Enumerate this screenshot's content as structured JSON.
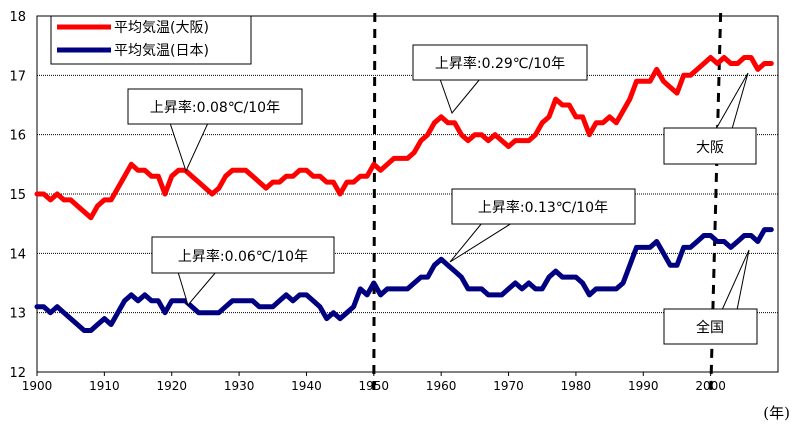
{
  "chart_data": {
    "type": "line",
    "x_unit_label": "(年)",
    "xlim": [
      1900,
      2010
    ],
    "ylim": [
      12,
      18
    ],
    "x_ticks": [
      1900,
      1910,
      1920,
      1930,
      1940,
      1950,
      1960,
      1970,
      1980,
      1990,
      2000
    ],
    "y_ticks": [
      12,
      13,
      14,
      15,
      16,
      17,
      18
    ],
    "grid": "horizontal",
    "legend_position": "top-left",
    "colors": {
      "osaka": "#ff0000",
      "japan": "#000080",
      "divider": "#000000"
    },
    "vertical_markers": [
      1950,
      2000
    ],
    "series": [
      {
        "id": "osaka",
        "name": "平均気温(大阪)",
        "x": [
          1900,
          1901,
          1902,
          1903,
          1904,
          1905,
          1906,
          1907,
          1908,
          1909,
          1910,
          1911,
          1912,
          1913,
          1914,
          1915,
          1916,
          1917,
          1918,
          1919,
          1920,
          1921,
          1922,
          1923,
          1924,
          1925,
          1926,
          1927,
          1928,
          1929,
          1930,
          1931,
          1932,
          1933,
          1934,
          1935,
          1936,
          1937,
          1938,
          1939,
          1940,
          1941,
          1942,
          1943,
          1944,
          1945,
          1946,
          1947,
          1948,
          1949,
          1950,
          1951,
          1952,
          1953,
          1954,
          1955,
          1956,
          1957,
          1958,
          1959,
          1960,
          1961,
          1962,
          1963,
          1964,
          1965,
          1966,
          1967,
          1968,
          1969,
          1970,
          1971,
          1972,
          1973,
          1974,
          1975,
          1976,
          1977,
          1978,
          1979,
          1980,
          1981,
          1982,
          1983,
          1984,
          1985,
          1986,
          1987,
          1988,
          1989,
          1990,
          1991,
          1992,
          1993,
          1994,
          1995,
          1996,
          1997,
          1998,
          1999,
          2000,
          2001,
          2002,
          2003,
          2004,
          2005,
          2006,
          2007,
          2008,
          2009
        ],
        "values": [
          15.0,
          15.0,
          14.9,
          15.0,
          14.9,
          14.9,
          14.8,
          14.7,
          14.6,
          14.8,
          14.9,
          14.9,
          15.1,
          15.3,
          15.5,
          15.4,
          15.4,
          15.3,
          15.3,
          15.0,
          15.3,
          15.4,
          15.4,
          15.3,
          15.2,
          15.1,
          15.0,
          15.1,
          15.3,
          15.4,
          15.4,
          15.4,
          15.3,
          15.2,
          15.1,
          15.2,
          15.2,
          15.3,
          15.3,
          15.4,
          15.4,
          15.3,
          15.3,
          15.2,
          15.2,
          15.0,
          15.2,
          15.2,
          15.3,
          15.3,
          15.5,
          15.4,
          15.5,
          15.6,
          15.6,
          15.6,
          15.7,
          15.9,
          16.0,
          16.2,
          16.3,
          16.2,
          16.2,
          16.0,
          15.9,
          16.0,
          16.0,
          15.9,
          16.0,
          15.9,
          15.8,
          15.9,
          15.9,
          15.9,
          16.0,
          16.2,
          16.3,
          16.6,
          16.5,
          16.5,
          16.3,
          16.3,
          16.0,
          16.2,
          16.2,
          16.3,
          16.2,
          16.4,
          16.6,
          16.9,
          16.9,
          16.9,
          17.1,
          16.9,
          16.8,
          16.7,
          17.0,
          17.0,
          17.1,
          17.2,
          17.3,
          17.2,
          17.3,
          17.2,
          17.2,
          17.3,
          17.3,
          17.1,
          17.2,
          17.2
        ]
      },
      {
        "id": "japan",
        "name": "平均気温(日本)",
        "x": [
          1900,
          1901,
          1902,
          1903,
          1904,
          1905,
          1906,
          1907,
          1908,
          1909,
          1910,
          1911,
          1912,
          1913,
          1914,
          1915,
          1916,
          1917,
          1918,
          1919,
          1920,
          1921,
          1922,
          1923,
          1924,
          1925,
          1926,
          1927,
          1928,
          1929,
          1930,
          1931,
          1932,
          1933,
          1934,
          1935,
          1936,
          1937,
          1938,
          1939,
          1940,
          1941,
          1942,
          1943,
          1944,
          1945,
          1946,
          1947,
          1948,
          1949,
          1950,
          1951,
          1952,
          1953,
          1954,
          1955,
          1956,
          1957,
          1958,
          1959,
          1960,
          1961,
          1962,
          1963,
          1964,
          1965,
          1966,
          1967,
          1968,
          1969,
          1970,
          1971,
          1972,
          1973,
          1974,
          1975,
          1976,
          1977,
          1978,
          1979,
          1980,
          1981,
          1982,
          1983,
          1984,
          1985,
          1986,
          1987,
          1988,
          1989,
          1990,
          1991,
          1992,
          1993,
          1994,
          1995,
          1996,
          1997,
          1998,
          1999,
          2000,
          2001,
          2002,
          2003,
          2004,
          2005,
          2006,
          2007,
          2008,
          2009
        ],
        "values": [
          13.1,
          13.1,
          13.0,
          13.1,
          13.0,
          12.9,
          12.8,
          12.7,
          12.7,
          12.8,
          12.9,
          12.8,
          13.0,
          13.2,
          13.3,
          13.2,
          13.3,
          13.2,
          13.2,
          13.0,
          13.2,
          13.2,
          13.2,
          13.1,
          13.0,
          13.0,
          13.0,
          13.0,
          13.1,
          13.2,
          13.2,
          13.2,
          13.2,
          13.1,
          13.1,
          13.1,
          13.2,
          13.3,
          13.2,
          13.3,
          13.3,
          13.2,
          13.1,
          12.9,
          13.0,
          12.9,
          13.0,
          13.1,
          13.4,
          13.3,
          13.5,
          13.3,
          13.4,
          13.4,
          13.4,
          13.4,
          13.5,
          13.6,
          13.6,
          13.8,
          13.9,
          13.8,
          13.7,
          13.6,
          13.4,
          13.4,
          13.4,
          13.3,
          13.3,
          13.3,
          13.4,
          13.5,
          13.4,
          13.5,
          13.4,
          13.4,
          13.6,
          13.7,
          13.6,
          13.6,
          13.6,
          13.5,
          13.3,
          13.4,
          13.4,
          13.4,
          13.4,
          13.5,
          13.8,
          14.1,
          14.1,
          14.1,
          14.2,
          14.0,
          13.8,
          13.8,
          14.1,
          14.1,
          14.2,
          14.3,
          14.3,
          14.2,
          14.2,
          14.1,
          14.2,
          14.3,
          14.3,
          14.2,
          14.4,
          14.4
        ]
      }
    ],
    "annotations": [
      {
        "id": "osaka-early",
        "text": "上昇率:0.08℃/10年",
        "series": "osaka",
        "period": "1900-1950"
      },
      {
        "id": "osaka-late",
        "text": "上昇率:0.29℃/10年",
        "series": "osaka",
        "period": "1950-2009"
      },
      {
        "id": "japan-early",
        "text": "上昇率:0.06℃/10年",
        "series": "japan",
        "period": "1900-1950"
      },
      {
        "id": "japan-late",
        "text": "上昇率:0.13℃/10年",
        "series": "japan",
        "period": "1950-2009"
      },
      {
        "id": "osaka-tag",
        "text": "大阪",
        "series": "osaka"
      },
      {
        "id": "japan-tag",
        "text": "全国",
        "series": "japan"
      }
    ]
  }
}
